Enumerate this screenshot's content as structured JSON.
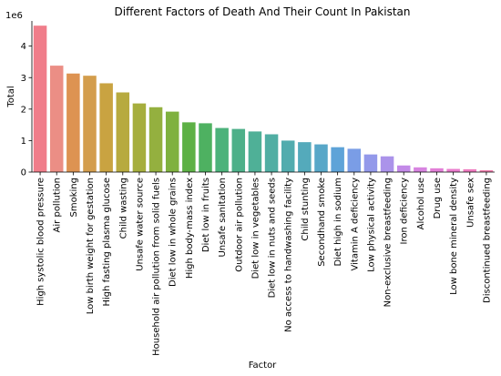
{
  "chart_data": {
    "type": "bar",
    "title": "Different Factors of Death And Their Count In Pakistan",
    "xlabel": "Factor",
    "ylabel": "Total",
    "y_offset_label": "1e6",
    "ylim": [
      0,
      4800000
    ],
    "yticks": [
      0,
      1000000,
      2000000,
      3000000,
      4000000
    ],
    "ytick_labels": [
      "0",
      "1",
      "2",
      "3",
      "4"
    ],
    "grid": false,
    "categories": [
      "High systolic blood pressure",
      "Air pollution",
      "Smoking",
      "Low birth weight for gestation",
      "High fasting plasma glucose",
      "Child wasting",
      "Unsafe water source",
      "Household air pollution from solid fuels",
      "Diet low in whole grains",
      "High body-mass index",
      "Diet low in fruits",
      "Unsafe sanitation",
      "Outdoor air pollution",
      "Diet low in vegetables",
      "Diet low in nuts and seeds",
      "No access to handwashing facility",
      "Child stunting",
      "Secondhand smoke",
      "Diet high in sodium",
      "Vitamin A deficiency",
      "Low physical activity",
      "Non-exclusive breastfeeding",
      "Iron deficiency",
      "Alcohol use",
      "Drug use",
      "Low bone mineral density",
      "Unsafe sex",
      "Discontinued breastfeeding"
    ],
    "values": [
      4650000,
      3380000,
      3130000,
      3060000,
      2820000,
      2530000,
      2180000,
      2060000,
      1920000,
      1580000,
      1550000,
      1400000,
      1370000,
      1290000,
      1200000,
      1000000,
      950000,
      880000,
      790000,
      740000,
      560000,
      500000,
      210000,
      150000,
      120000,
      100000,
      90000,
      60000
    ],
    "colors": [
      "#f07d8a",
      "#eb8e85",
      "#dd9352",
      "#d39d4c",
      "#c9a341",
      "#b7aa3f",
      "#a6ae3d",
      "#94b03f",
      "#7fb13f",
      "#5db145",
      "#4eb161",
      "#4cb27b",
      "#4db089",
      "#4fb097",
      "#50aea3",
      "#52acae",
      "#54aabb",
      "#58a7c8",
      "#5ea3d8",
      "#7a9de6",
      "#9399ea",
      "#ab93ea",
      "#c38ae8",
      "#d784e0",
      "#e27fd7",
      "#ea7ccd",
      "#ee7bbf",
      "#f07fae"
    ]
  }
}
